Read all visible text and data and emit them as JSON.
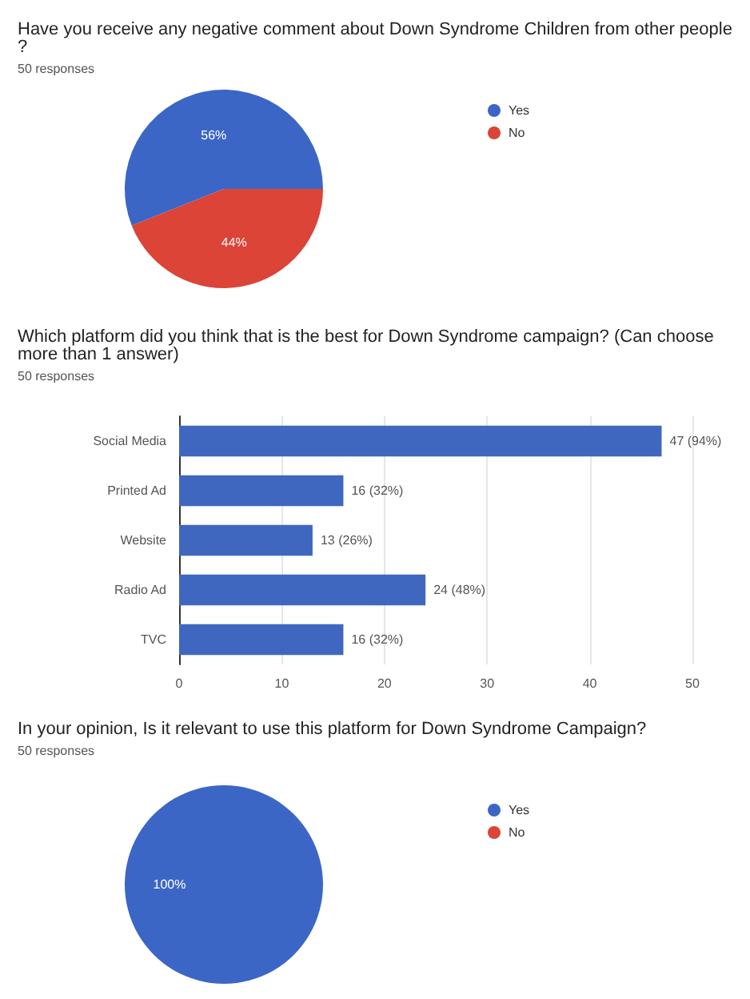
{
  "chart_data": [
    {
      "type": "pie",
      "title": "Have you receive any negative comment about Down Syndrome Children from other people?",
      "subtitle": "50 responses",
      "categories": [
        "Yes",
        "No"
      ],
      "values": [
        56,
        44
      ],
      "colors": [
        "#3c66c6",
        "#db4437"
      ],
      "value_labels": [
        "56%",
        "44%"
      ],
      "legend": "top right"
    },
    {
      "type": "bar",
      "orientation": "horizontal",
      "title": "Which platform did you think that is the best for Down Syndrome campaign? (Can choose more than 1 answer)",
      "subtitle": "50 responses",
      "categories": [
        "Social Media",
        "Printed Ad",
        "Website",
        "Radio Ad",
        "TVC"
      ],
      "values": [
        47,
        16,
        13,
        24,
        16
      ],
      "color": "#3f67c0",
      "value_labels": [
        "47 (94%)",
        "16 (32%)",
        "13 (26%)",
        "24 (48%)",
        "16 (32%)"
      ],
      "xlim": [
        0,
        50
      ],
      "xticks": [
        0,
        10,
        20,
        30,
        40,
        50
      ],
      "grid": "x"
    },
    {
      "type": "pie",
      "title": "In your opinion, Is it relevant to use this platform for Down Syndrome Campaign?",
      "subtitle": "50 responses",
      "categories": [
        "Yes",
        "No"
      ],
      "values": [
        100,
        0
      ],
      "colors": [
        "#3c66c6",
        "#db4437"
      ],
      "value_labels": [
        "100%",
        null
      ],
      "legend": "top right"
    }
  ]
}
